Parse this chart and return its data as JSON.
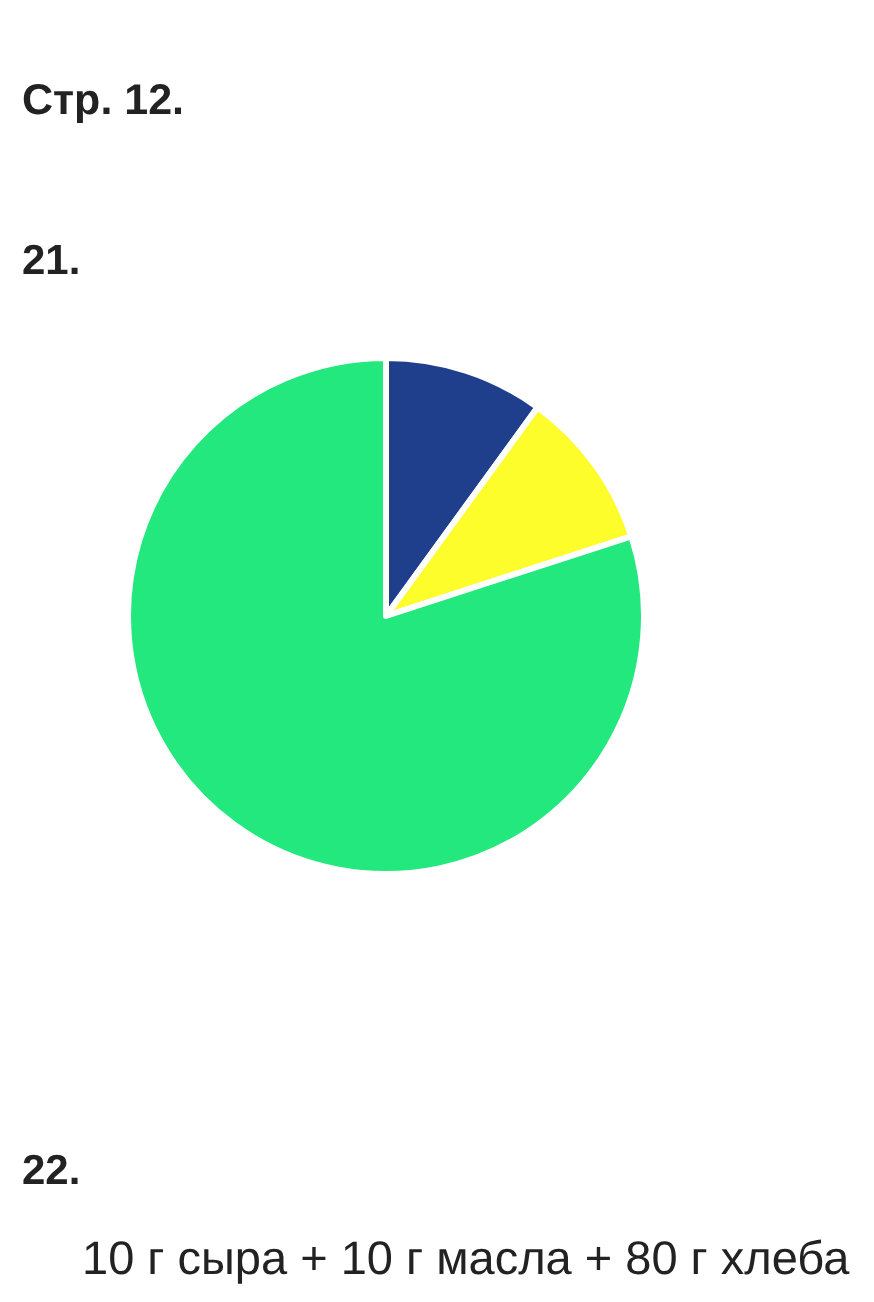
{
  "chart_data": {
    "type": "pie",
    "title": "Стр. 12.",
    "subtitle": "21.",
    "annotations": [
      "22.",
      "10 г сыра + 10 г масла + 80 г хлеба"
    ],
    "categories": [
      null,
      null,
      null
    ],
    "values": [
      10,
      10,
      80
    ],
    "colors": [
      "#1f3f8c",
      "#fdfd2b",
      "#22e87d"
    ]
  }
}
